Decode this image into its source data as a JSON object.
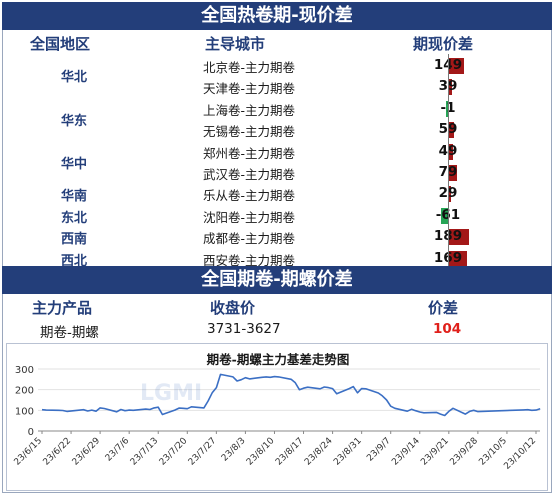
{
  "spot_section": {
    "title": "全国热卷期-现价差",
    "col_region": "全国地区",
    "col_city": "主导城市",
    "col_spread": "期现价差",
    "rows": [
      {
        "region": "华北",
        "city": "北京卷-主力期卷",
        "spread": 149
      },
      {
        "region": "",
        "city": "天津卷-主力期卷",
        "spread": 39
      },
      {
        "region": "华东",
        "city": "上海卷-主力期卷",
        "spread": -1
      },
      {
        "region": "",
        "city": "无锡卷-主力期卷",
        "spread": 59
      },
      {
        "region": "华中",
        "city": "郑州卷-主力期卷",
        "spread": 49
      },
      {
        "region": "",
        "city": "武汉卷-主力期卷",
        "spread": 79
      },
      {
        "region": "华南",
        "city": "乐从卷-主力期卷",
        "spread": 29
      },
      {
        "region": "东北",
        "city": "沈阳卷-主力期卷",
        "spread": -61
      },
      {
        "region": "西南",
        "city": "成都卷-主力期卷",
        "spread": 189
      },
      {
        "region": "西北",
        "city": "西安卷-主力期卷",
        "spread": 169
      }
    ],
    "region_labels": [
      "华北",
      "华东",
      "华中",
      "华南",
      "东北",
      "西南",
      "西北"
    ]
  },
  "futures_section": {
    "title": "全国期卷-期螺价差",
    "col_product": "主力产品",
    "col_close": "收盘价",
    "col_spread": "价差",
    "product": "期卷-期螺",
    "close": "3731-3627",
    "spread": "104",
    "spread_color": "#e0201b"
  },
  "chart_data": {
    "type": "line",
    "title": "期卷-期螺主力基差走势图",
    "ylim": [
      0,
      300
    ],
    "yticks": [
      "0",
      "100",
      "200",
      "300"
    ],
    "xticks": [
      "23/6/15",
      "23/6/22",
      "23/6/29",
      "23/7/6",
      "23/7/13",
      "23/7/20",
      "23/7/27",
      "23/8/3",
      "23/8/10",
      "23/8/17",
      "23/8/24",
      "23/8/31",
      "23/9/7",
      "23/9/14",
      "23/9/21",
      "23/9/28",
      "23/10/5",
      "23/10/12"
    ],
    "grid": true,
    "line_color": "#3b6fc4",
    "series": [
      {
        "x": [
          "23/6/15",
          "23/6/16",
          "23/6/19",
          "23/6/20",
          "23/6/21",
          "23/6/25",
          "23/6/26",
          "23/6/27",
          "23/6/28",
          "23/6/29",
          "23/6/30",
          "23/7/3",
          "23/7/4",
          "23/7/5",
          "23/7/6",
          "23/7/7",
          "23/7/10",
          "23/7/11",
          "23/7/12",
          "23/7/13",
          "23/7/14",
          "23/7/17",
          "23/7/18",
          "23/7/19",
          "23/7/20",
          "23/7/21",
          "23/7/24",
          "23/7/25",
          "23/7/26",
          "23/7/27",
          "23/7/28",
          "23/7/31",
          "23/8/1",
          "23/8/2",
          "23/8/3",
          "23/8/4",
          "23/8/7",
          "23/8/8",
          "23/8/9",
          "23/8/10",
          "23/8/11",
          "23/8/14",
          "23/8/15",
          "23/8/16",
          "23/8/17",
          "23/8/18",
          "23/8/21",
          "23/8/22",
          "23/8/23",
          "23/8/24",
          "23/8/25",
          "23/8/28",
          "23/8/29",
          "23/8/30",
          "23/8/31",
          "23/9/1",
          "23/9/4",
          "23/9/5",
          "23/9/6",
          "23/9/7",
          "23/9/8",
          "23/9/11",
          "23/9/12",
          "23/9/13",
          "23/9/14",
          "23/9/15",
          "23/9/18",
          "23/9/19",
          "23/9/20",
          "23/9/21",
          "23/9/22",
          "23/9/25",
          "23/9/26",
          "23/9/27",
          "23/9/28",
          "23/10/9",
          "23/10/10",
          "23/10/11",
          "23/10/12",
          "23/10/13"
        ],
        "values": [
          103,
          101,
          100,
          99,
          95,
          103,
          97,
          101,
          96,
          112,
          109,
          93,
          104,
          98,
          101,
          100,
          106,
          104,
          112,
          115,
          80,
          101,
          111,
          110,
          108,
          117,
          112,
          145,
          185,
          210,
          274,
          262,
          242,
          248,
          258,
          252,
          260,
          262,
          260,
          263,
          262,
          250,
          234,
          200,
          207,
          212,
          204,
          213,
          210,
          205,
          180,
          205,
          215,
          185,
          205,
          204,
          184,
          170,
          150,
          120,
          110,
          96,
          105,
          98,
          92,
          88,
          90,
          82,
          75,
          95,
          110,
          82,
          95,
          100,
          94,
          102,
          103,
          100,
          101,
          108
        ]
      }
    ]
  }
}
